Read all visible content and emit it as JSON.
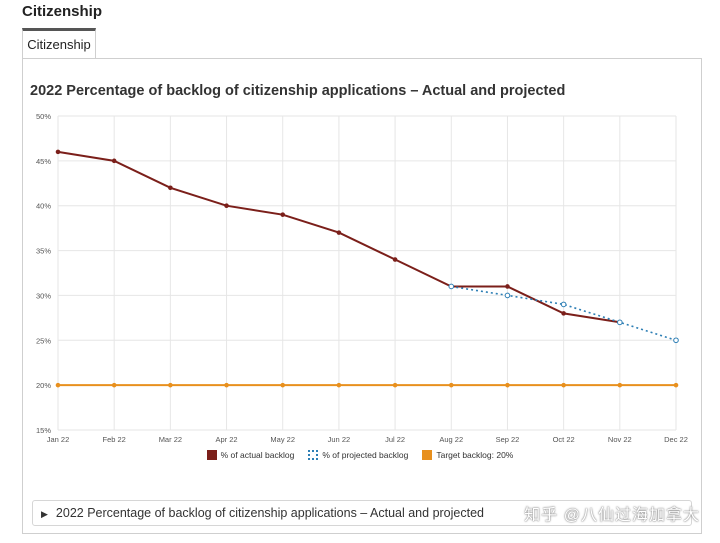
{
  "page": {
    "section_heading": "Citizenship",
    "tab_label": "Citizenship",
    "disclosure_label": "2022 Percentage of backlog of citizenship applications – Actual and projected",
    "watermark": "知乎 @八仙过海加拿大"
  },
  "colors": {
    "actual": "#7b1f1a",
    "projected": "#2e7fb5",
    "target": "#e8901e"
  },
  "chart_data": {
    "type": "line",
    "title": "2022 Percentage of backlog of citizenship applications – Actual and projected",
    "xlabel": "",
    "ylabel": "",
    "categories": [
      "Jan 22",
      "Feb 22",
      "Mar 22",
      "Apr 22",
      "May 22",
      "Jun 22",
      "Jul 22",
      "Aug 22",
      "Sep 22",
      "Oct 22",
      "Nov 22",
      "Dec 22"
    ],
    "ylim": [
      15,
      50
    ],
    "yticks": [
      15,
      20,
      25,
      30,
      35,
      40,
      45,
      50
    ],
    "y_tick_format": "%",
    "grid": true,
    "legend_position": "bottom",
    "series": [
      {
        "name": "% of actual backlog",
        "style": "solid",
        "values": [
          46,
          45,
          42,
          40,
          39,
          37,
          34,
          31,
          31,
          28,
          27,
          null
        ]
      },
      {
        "name": "% of projected backlog",
        "style": "dotted",
        "values": [
          null,
          null,
          null,
          null,
          null,
          null,
          null,
          31,
          30,
          29,
          27,
          25
        ]
      },
      {
        "name": "Target backlog: 20%",
        "style": "solid",
        "values": [
          20,
          20,
          20,
          20,
          20,
          20,
          20,
          20,
          20,
          20,
          20,
          20
        ]
      }
    ]
  }
}
